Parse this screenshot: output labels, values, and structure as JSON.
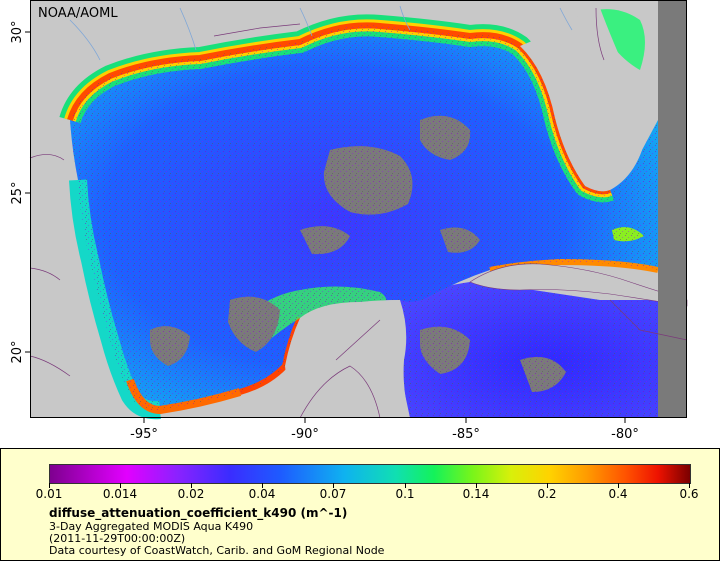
{
  "map": {
    "attribution": "NOAA/AOML",
    "lon_labels": [
      "-95°",
      "-90°",
      "-85°",
      "-80°"
    ],
    "lat_labels": [
      "30°",
      "25°",
      "20°"
    ]
  },
  "legend": {
    "variable": "diffuse_attenuation_coefficient_k490 (m^-1)",
    "ticks": [
      "0.01",
      "0.014",
      "0.02",
      "0.04",
      "0.07",
      "0.1",
      "0.14",
      "0.2",
      "0.4",
      "0.6"
    ],
    "lines": [
      "3-Day Aggregated MODIS Aqua K490",
      "(2011-11-29T00:00:00Z)",
      "Data courtesy of CoastWatch, Carib. and GoM Regional Node"
    ]
  },
  "colors": {
    "land": "#c8c8c8",
    "cloud": "#7a7a7a",
    "deep_water": "#2b3cff",
    "coastal": "#ff5a00",
    "footer_bg": "#ffffcc"
  }
}
